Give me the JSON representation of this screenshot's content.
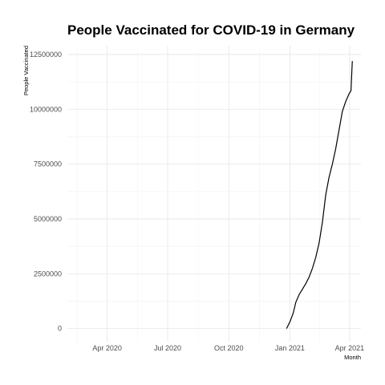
{
  "chart_data": {
    "type": "line",
    "title": "People Vaccinated for COVID-19 in Germany",
    "xlabel": "Month",
    "ylabel": "People Vaccinated",
    "x_tick_labels": [
      {
        "date": "2020-04-01",
        "label": "Apr 2020"
      },
      {
        "date": "2020-07-01",
        "label": "Jul 2020"
      },
      {
        "date": "2020-10-01",
        "label": "Oct 2020"
      },
      {
        "date": "2021-01-01",
        "label": "Jan 2021"
      },
      {
        "date": "2021-04-01",
        "label": "Apr 2021"
      }
    ],
    "y_ticks": [
      0,
      2500000,
      5000000,
      7500000,
      10000000,
      12500000
    ],
    "y_tick_labels": [
      "0",
      "2500000",
      "5000000",
      "7500000",
      "10000000",
      "12500000"
    ],
    "xlim": [
      "2020-02-01",
      "2021-04-18"
    ],
    "ylim": [
      -600000,
      12900000
    ],
    "grid": true,
    "legend": "none",
    "series": [
      {
        "color": "#000000",
        "x": [
          "2020-12-27",
          "2021-01-01",
          "2021-01-06",
          "2021-01-10",
          "2021-01-15",
          "2021-01-20",
          "2021-01-25",
          "2021-01-30",
          "2021-02-04",
          "2021-02-09",
          "2021-02-14",
          "2021-02-19",
          "2021-02-24",
          "2021-03-01",
          "2021-03-06",
          "2021-03-11",
          "2021-03-16",
          "2021-03-21",
          "2021-03-26",
          "2021-03-31",
          "2021-04-03",
          "2021-04-05"
        ],
        "y": [
          0,
          300000,
          700000,
          1200000,
          1550000,
          1800000,
          2050000,
          2350000,
          2750000,
          3250000,
          3900000,
          4850000,
          6100000,
          6900000,
          7500000,
          8200000,
          9050000,
          9900000,
          10350000,
          10700000,
          10850000,
          12200000
        ]
      }
    ]
  }
}
